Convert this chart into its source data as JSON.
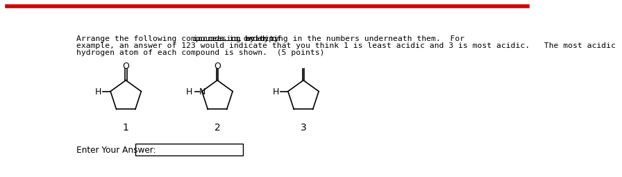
{
  "background_color": "#ffffff",
  "border_color": "#cc0000",
  "line1a": "Arrange the following compounds in order of ",
  "line1b": "increasing acidity",
  "line1c": " by typing in the numbers underneath them.  For",
  "line2": "example, an answer of 123 would indicate that you think 1 is least acidic and 3 is most acidic.   The most acidic",
  "line3": "hydrogen atom of each compound is shown.  (5 points)",
  "label1": "1",
  "label2": "2",
  "label3": "3",
  "answer_label": "Enter Your Answer:",
  "font_size_text": 8.2,
  "font_size_labels": 10,
  "font_size_struct": 9
}
